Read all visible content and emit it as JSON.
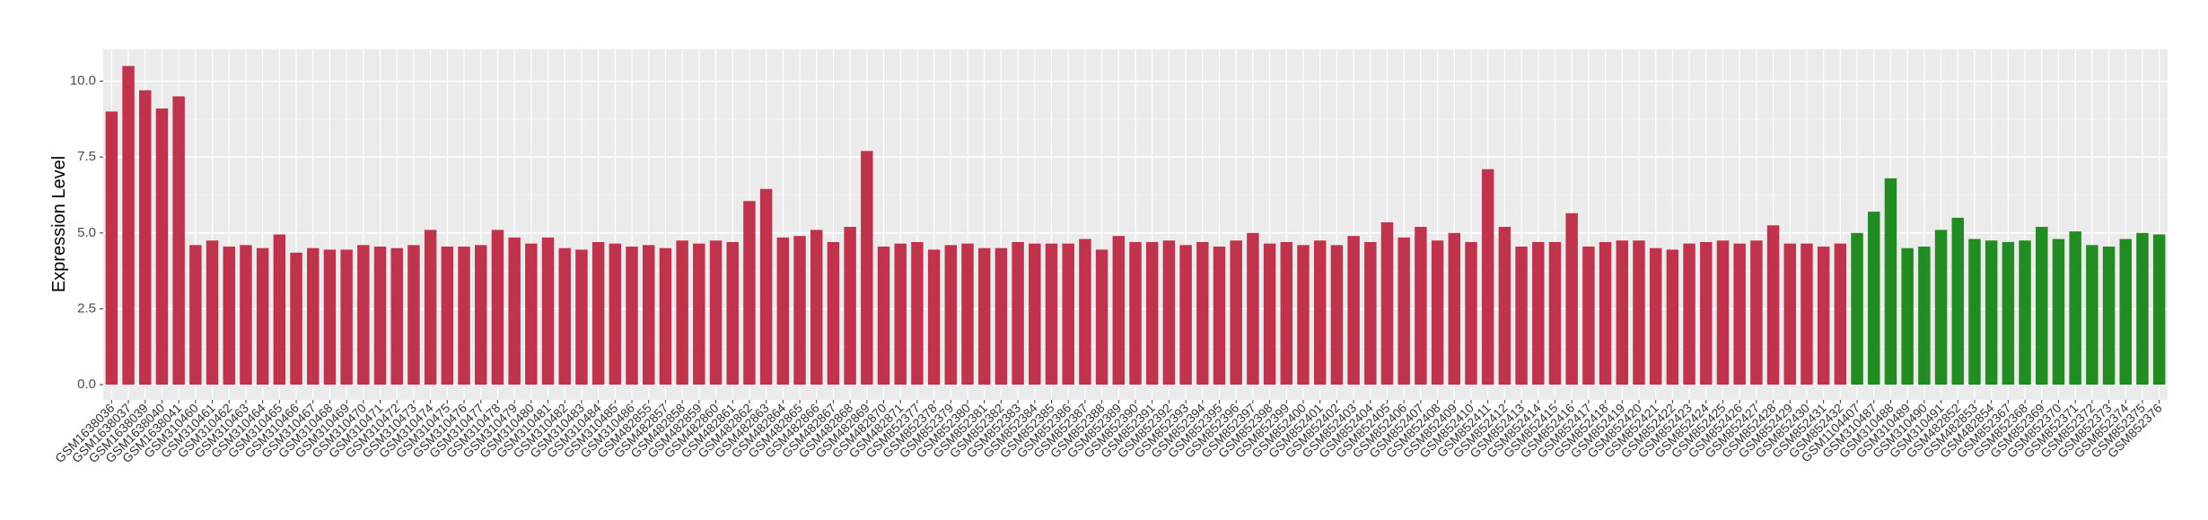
{
  "chart_data": {
    "type": "bar",
    "y_label": "Expression Level",
    "categories": [
      "GSM1638036",
      "GSM1638037",
      "GSM1638039",
      "GSM1638040",
      "GSM1638041",
      "GSM310460",
      "GSM310461",
      "GSM310462",
      "GSM310463",
      "GSM310464",
      "GSM310465",
      "GSM310466",
      "GSM310467",
      "GSM310468",
      "GSM310469",
      "GSM310470",
      "GSM310471",
      "GSM310472",
      "GSM310473",
      "GSM310474",
      "GSM310475",
      "GSM310476",
      "GSM310477",
      "GSM310478",
      "GSM310479",
      "GSM310480",
      "GSM310481",
      "GSM310482",
      "GSM310483",
      "GSM310484",
      "GSM310485",
      "GSM310486",
      "GSM482855",
      "GSM482857",
      "GSM482858",
      "GSM482859",
      "GSM482860",
      "GSM482861",
      "GSM482862",
      "GSM482863",
      "GSM482864",
      "GSM482865",
      "GSM482866",
      "GSM482867",
      "GSM482868",
      "GSM482869",
      "GSM482870",
      "GSM482871",
      "GSM852377",
      "GSM852378",
      "GSM852379",
      "GSM852380",
      "GSM852381",
      "GSM852382",
      "GSM852383",
      "GSM852384",
      "GSM852385",
      "GSM852386",
      "GSM852387",
      "GSM852388",
      "GSM852389",
      "GSM852390",
      "GSM852391",
      "GSM852392",
      "GSM852393",
      "GSM852394",
      "GSM852395",
      "GSM852396",
      "GSM852397",
      "GSM852398",
      "GSM852399",
      "GSM852400",
      "GSM852401",
      "GSM852402",
      "GSM852403",
      "GSM852404",
      "GSM852405",
      "GSM852406",
      "GSM852407",
      "GSM852408",
      "GSM852409",
      "GSM852410",
      "GSM852411",
      "GSM852412",
      "GSM852413",
      "GSM852414",
      "GSM852415",
      "GSM852416",
      "GSM852417",
      "GSM852418",
      "GSM852419",
      "GSM852420",
      "GSM852421",
      "GSM852422",
      "GSM852423",
      "GSM852424",
      "GSM852425",
      "GSM852426",
      "GSM852427",
      "GSM852428",
      "GSM852429",
      "GSM852430",
      "GSM852431",
      "GSM852432",
      "GSM1104407",
      "GSM310487",
      "GSM310488",
      "GSM310489",
      "GSM310490",
      "GSM310491",
      "GSM482852",
      "GSM482853",
      "GSM482854",
      "GSM852367",
      "GSM852368",
      "GSM852369",
      "GSM852370",
      "GSM852371",
      "GSM852372",
      "GSM852373",
      "GSM852374",
      "GSM852375",
      "GSM852376"
    ],
    "series": [
      {
        "color": "#c0334d",
        "values": [
          9.0,
          10.5,
          9.7,
          9.1,
          9.5,
          4.6,
          4.75,
          4.55,
          4.6,
          4.5,
          4.95,
          4.35,
          4.5,
          4.45,
          4.45,
          4.6,
          4.55,
          4.5,
          4.6,
          5.1,
          4.55,
          4.55,
          4.6,
          5.1,
          4.85,
          4.65,
          4.85,
          4.5,
          4.45,
          4.7,
          4.65,
          4.55,
          4.6,
          4.5,
          4.75,
          4.65,
          4.75,
          4.7,
          6.05,
          6.45,
          4.85,
          4.9,
          5.1,
          4.7,
          5.2,
          7.7,
          4.55,
          4.65,
          4.7,
          4.45,
          4.6,
          4.65,
          4.5,
          4.5,
          4.7,
          4.65,
          4.65,
          4.65,
          4.8,
          4.45,
          4.9,
          4.7,
          4.7,
          4.75,
          4.6,
          4.7,
          4.55,
          4.75,
          5.0,
          4.65,
          4.7,
          4.6,
          4.75,
          4.6,
          4.9,
          4.7,
          5.35,
          4.85,
          5.2,
          4.75,
          5.0,
          4.7,
          7.1,
          5.2,
          4.55,
          4.7,
          4.7,
          5.65,
          4.55,
          4.7,
          4.75,
          4.75,
          4.5,
          4.45,
          4.65,
          4.7,
          4.75,
          4.65,
          4.75,
          5.25,
          4.65,
          4.65,
          4.55,
          4.65,
          null,
          null,
          null,
          null,
          null,
          null,
          null,
          null,
          null,
          null,
          null,
          null,
          null,
          null,
          null,
          null,
          null,
          null,
          null
        ]
      },
      {
        "color": "#228b22",
        "values": [
          null,
          null,
          null,
          null,
          null,
          null,
          null,
          null,
          null,
          null,
          null,
          null,
          null,
          null,
          null,
          null,
          null,
          null,
          null,
          null,
          null,
          null,
          null,
          null,
          null,
          null,
          null,
          null,
          null,
          null,
          null,
          null,
          null,
          null,
          null,
          null,
          null,
          null,
          null,
          null,
          null,
          null,
          null,
          null,
          null,
          null,
          null,
          null,
          null,
          null,
          null,
          null,
          null,
          null,
          null,
          null,
          null,
          null,
          null,
          null,
          null,
          null,
          null,
          null,
          null,
          null,
          null,
          null,
          null,
          null,
          null,
          null,
          null,
          null,
          null,
          null,
          null,
          null,
          null,
          null,
          null,
          null,
          null,
          null,
          null,
          null,
          null,
          null,
          null,
          null,
          null,
          null,
          null,
          null,
          null,
          null,
          null,
          null,
          null,
          null,
          null,
          null,
          null,
          null,
          5.0,
          5.7,
          6.8,
          4.5,
          4.55,
          5.1,
          5.5,
          4.8,
          4.75,
          4.7,
          4.75,
          5.2,
          4.8,
          5.05,
          4.6,
          4.55,
          4.8,
          5.0,
          4.95
        ]
      }
    ],
    "ylim": [
      -0.5,
      11.05
    ],
    "yticks": [
      {
        "value": 0,
        "label": "0.0"
      },
      {
        "value": 2.5,
        "label": "2.5"
      },
      {
        "value": 5,
        "label": "5.0"
      },
      {
        "value": 7.5,
        "label": "7.5"
      },
      {
        "value": 10,
        "label": "10.0"
      }
    ],
    "grid": true
  }
}
